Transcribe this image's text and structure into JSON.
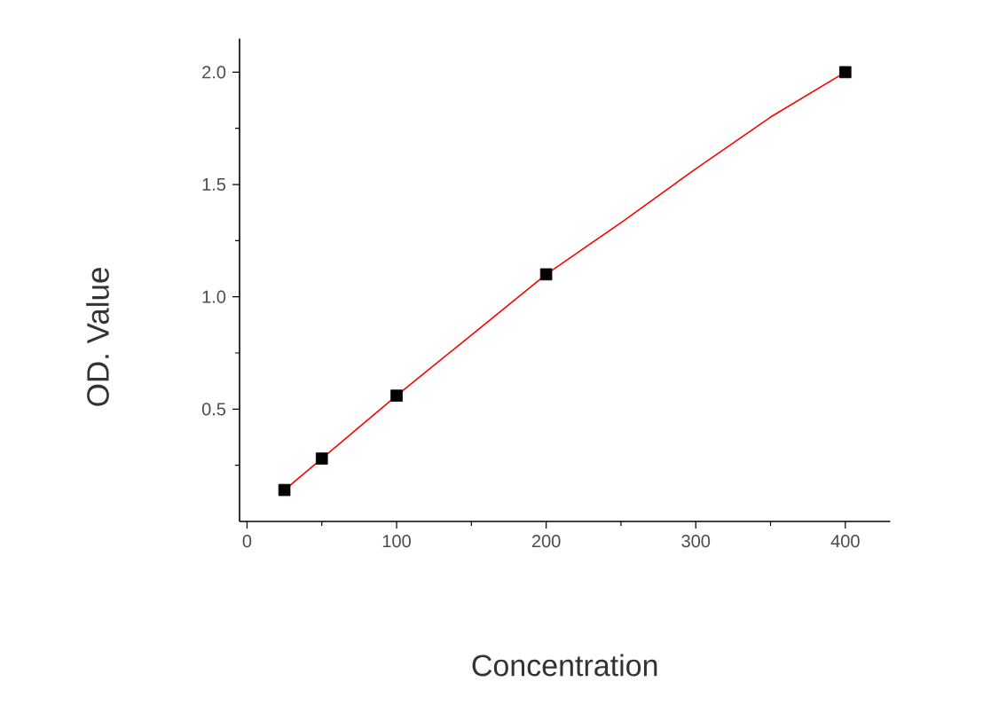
{
  "chart_data": {
    "type": "scatter",
    "xlabel": "Concentration",
    "ylabel": "OD. Value",
    "xlim": [
      -5,
      430
    ],
    "ylim": [
      0,
      2.15
    ],
    "xticks": [
      0,
      {
        "value": 50,
        "label": null
      },
      100,
      {
        "value": 150,
        "label": null
      },
      200,
      {
        "value": 250,
        "label": null
      },
      300,
      {
        "value": 350,
        "label": null
      },
      400
    ],
    "yticks": [
      {
        "value": 0.25,
        "label": null
      },
      0.5,
      {
        "value": 0.75,
        "label": null
      },
      {
        "value": 1.0,
        "label": "1.0"
      },
      {
        "value": 1.25,
        "label": null
      },
      1.5,
      {
        "value": 1.75,
        "label": null
      },
      {
        "value": 2.0,
        "label": "2.0"
      }
    ],
    "x": [
      25,
      50,
      100,
      200,
      400
    ],
    "marker": "square",
    "series": [
      {
        "color": "#000000",
        "values": [
          0.14,
          0.28,
          0.56,
          1.1,
          2.0
        ]
      },
      {
        "type": "line",
        "color": "#ff0000",
        "marker": "none",
        "line_style": "solid",
        "x": [
          25,
          50,
          100,
          150,
          200,
          250,
          300,
          350,
          400
        ],
        "values": [
          0.14,
          0.28,
          0.56,
          0.83,
          1.1,
          1.33,
          1.57,
          1.8,
          2.0
        ]
      }
    ]
  }
}
